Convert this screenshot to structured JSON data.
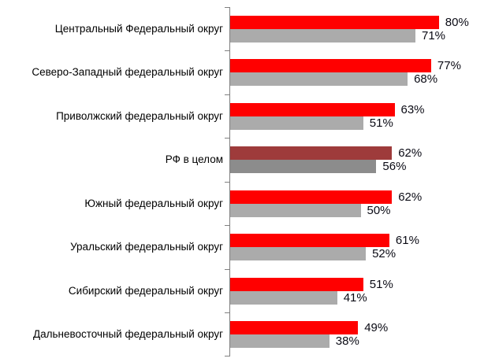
{
  "chart_data": {
    "type": "bar",
    "orientation": "horizontal",
    "title": "",
    "xlabel": "",
    "ylabel": "",
    "xlim": [
      0,
      100
    ],
    "grid": false,
    "legend": null,
    "value_suffix": "%",
    "categories": [
      "Центральный Федеральный округ",
      "Северо-Западный федеральный округ",
      "Приволжский федеральный округ",
      "РФ в целом",
      "Южный федеральный округ",
      "Уральский федеральный округ",
      "Сибирский федеральный округ",
      "Дальневосточный федеральный округ"
    ],
    "series": [
      {
        "name": "primary",
        "color": "#FF0000",
        "values": [
          80,
          77,
          63,
          62,
          62,
          61,
          51,
          49
        ],
        "display": [
          "80%",
          "77%",
          "63%",
          "62%",
          "62%",
          "61%",
          "51%",
          "49%"
        ]
      },
      {
        "name": "secondary",
        "color": "#ABABAB",
        "values": [
          71,
          68,
          51,
          56,
          50,
          52,
          41,
          38
        ],
        "display": [
          "71%",
          "68%",
          "51%",
          "56%",
          "50%",
          "52%",
          "41%",
          "38%"
        ]
      }
    ],
    "highlight": {
      "category_index": 3,
      "category": "РФ в целом",
      "series_colors": [
        "#9E3B3B",
        "#8C8C8C"
      ]
    },
    "colors": {
      "axis": "#7F7F7F",
      "category_label": "#000000",
      "value_label": "#0A0A14",
      "background": "#FFFFFF"
    }
  }
}
